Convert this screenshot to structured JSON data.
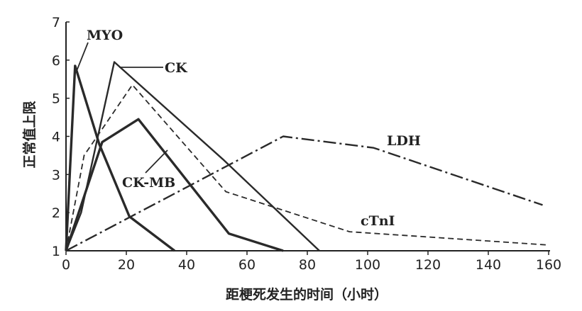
{
  "chart_data": {
    "type": "line",
    "title": "",
    "xlabel": "距梗死发生的时间（小时）",
    "ylabel": "正常值上限",
    "xlim": [
      0,
      160
    ],
    "ylim": [
      1,
      7
    ],
    "xticks": [
      0,
      20,
      40,
      60,
      80,
      100,
      120,
      140,
      160
    ],
    "yticks": [
      1,
      2,
      3,
      4,
      5,
      6,
      7
    ],
    "grid": false,
    "legend": "none",
    "series": [
      {
        "name": "MYO",
        "style": "solid",
        "weight": "heavy",
        "x": [
          0,
          3,
          11,
          21,
          36
        ],
        "y": [
          1,
          5.85,
          3.8,
          1.9,
          1
        ]
      },
      {
        "name": "CK",
        "style": "solid",
        "weight": "medium",
        "x": [
          0,
          5,
          16,
          52,
          84
        ],
        "y": [
          1,
          2,
          5.95,
          3.4,
          1
        ]
      },
      {
        "name": "CK-MB",
        "style": "solid",
        "weight": "heavy",
        "x": [
          0,
          12,
          24,
          54,
          72
        ],
        "y": [
          1,
          3.85,
          4.45,
          1.45,
          1
        ]
      },
      {
        "name": "cTnI",
        "style": "dashed",
        "weight": "light",
        "x": [
          0,
          6,
          22,
          53,
          94,
          160
        ],
        "y": [
          1,
          3.5,
          5.35,
          2.55,
          1.5,
          1.15
        ]
      },
      {
        "name": "LDH",
        "style": "dashdot",
        "weight": "medium",
        "x": [
          0,
          72,
          102,
          158
        ],
        "y": [
          1,
          4.0,
          3.7,
          2.2
        ]
      }
    ]
  }
}
